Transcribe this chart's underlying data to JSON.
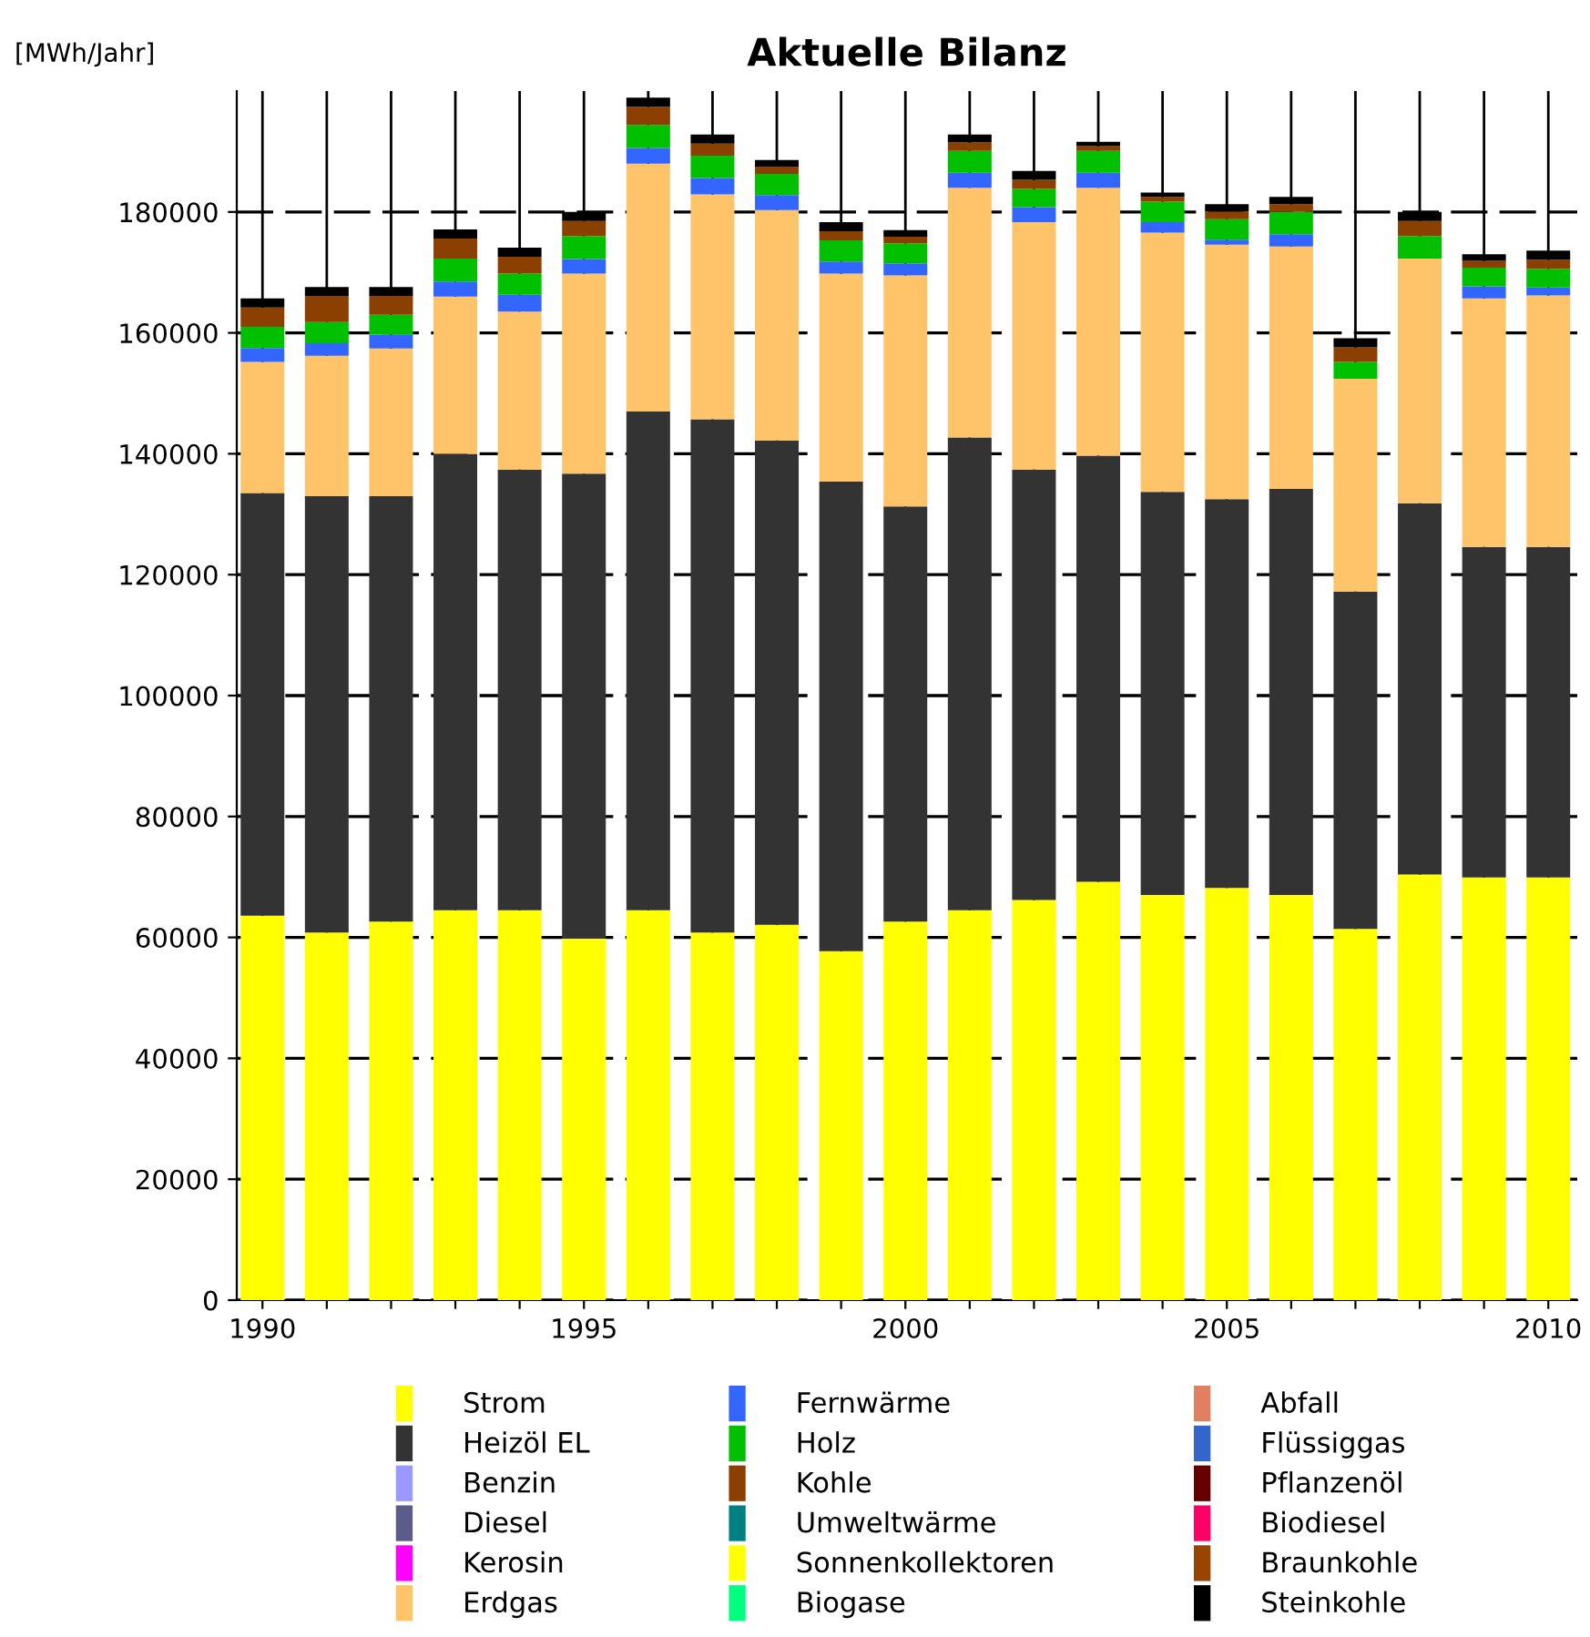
{
  "chart_data": {
    "type": "bar",
    "title": "Aktuelle Bilanz",
    "ylabel": "[MWh/Jahr]",
    "stacked": true,
    "grid": true,
    "legend": "bottom",
    "x": [
      1990,
      1991,
      1992,
      1993,
      1994,
      1995,
      1996,
      1997,
      1998,
      1999,
      2000,
      2001,
      2002,
      2003,
      2004,
      2005,
      2006,
      2007,
      2008,
      2009,
      2010
    ],
    "xlim": [
      1989.6,
      2010.45
    ],
    "xticks": [
      1990,
      {
        "value": 1991,
        "label": null
      },
      {
        "value": 1992,
        "label": null
      },
      {
        "value": 1993,
        "label": null
      },
      {
        "value": 1994,
        "label": null
      },
      1995,
      {
        "value": 1996,
        "label": null
      },
      {
        "value": 1997,
        "label": null
      },
      {
        "value": 1998,
        "label": null
      },
      {
        "value": 1999,
        "label": null
      },
      2000,
      {
        "value": 2001,
        "label": null
      },
      {
        "value": 2002,
        "label": null
      },
      {
        "value": 2003,
        "label": null
      },
      {
        "value": 2004,
        "label": null
      },
      2005,
      {
        "value": 2006,
        "label": null
      },
      {
        "value": 2007,
        "label": null
      },
      {
        "value": 2008,
        "label": null
      },
      {
        "value": 2009,
        "label": null
      },
      2010
    ],
    "ylim": [
      0,
      200000
    ],
    "yticks": [
      0,
      20000,
      40000,
      60000,
      80000,
      100000,
      120000,
      140000,
      160000,
      180000
    ],
    "series": [
      {
        "name": "Strom",
        "color": "#ffff00",
        "values": [
          63600,
          60800,
          62600,
          64500,
          64500,
          59800,
          64500,
          60800,
          62100,
          57700,
          62600,
          64500,
          66200,
          69200,
          67000,
          68200,
          67000,
          61400,
          70400,
          69900,
          69900
        ]
      },
      {
        "name": "Heizöl EL",
        "color": "#333333",
        "values": [
          69900,
          72200,
          70400,
          75500,
          72900,
          76900,
          82500,
          84900,
          80100,
          77700,
          68700,
          78200,
          71200,
          70500,
          66700,
          64300,
          67200,
          55800,
          61400,
          54700,
          54700
        ]
      },
      {
        "name": "Benzin",
        "color": "#9999ff",
        "values": [
          null,
          null,
          null,
          null,
          null,
          null,
          null,
          null,
          null,
          null,
          null,
          null,
          null,
          null,
          null,
          null,
          null,
          null,
          null,
          null,
          null
        ]
      },
      {
        "name": "Diesel",
        "color": "#5c5c8a",
        "values": [
          null,
          null,
          null,
          null,
          null,
          null,
          null,
          null,
          null,
          null,
          null,
          null,
          null,
          null,
          null,
          null,
          null,
          null,
          null,
          null,
          null
        ]
      },
      {
        "name": "Kerosin",
        "color": "#ff00ff",
        "values": [
          null,
          null,
          null,
          null,
          null,
          null,
          null,
          null,
          null,
          null,
          null,
          null,
          null,
          null,
          null,
          null,
          null,
          null,
          null,
          null,
          null
        ]
      },
      {
        "name": "Erdgas",
        "color": "#ffc46a",
        "values": [
          21700,
          23200,
          24400,
          26000,
          26100,
          33100,
          41000,
          37200,
          38100,
          34400,
          38200,
          41300,
          40900,
          44300,
          42900,
          42100,
          40100,
          35200,
          40500,
          41100,
          41600
        ]
      },
      {
        "name": "Fernwärme",
        "color": "#3366ff",
        "values": [
          2300,
          2100,
          2300,
          2500,
          2800,
          2400,
          2600,
          2700,
          2500,
          2000,
          2000,
          2500,
          2500,
          2500,
          1700,
          800,
          2000,
          null,
          null,
          2000,
          1300
        ]
      },
      {
        "name": "Holz",
        "color": "#00c000",
        "values": [
          3500,
          3500,
          3300,
          3800,
          3500,
          3800,
          3800,
          3700,
          3500,
          3500,
          3300,
          3600,
          3000,
          3600,
          3400,
          3400,
          3700,
          2800,
          3700,
          3100,
          3100
        ]
      },
      {
        "name": "Kohle",
        "color": "#8b4000",
        "values": [
          3200,
          4300,
          3100,
          3300,
          2800,
          2500,
          3000,
          2000,
          1200,
          1500,
          1100,
          1400,
          1500,
          800,
          800,
          1300,
          1300,
          2400,
          2500,
          1100,
          1500
        ]
      },
      {
        "name": "Umweltwärme",
        "color": "#008080",
        "values": [
          null,
          null,
          null,
          null,
          null,
          null,
          null,
          null,
          null,
          null,
          null,
          null,
          null,
          null,
          null,
          null,
          null,
          null,
          null,
          null,
          null
        ]
      },
      {
        "name": "Sonnenkollektoren",
        "color": "#ffff00",
        "values": [
          null,
          null,
          null,
          null,
          null,
          null,
          null,
          null,
          null,
          null,
          null,
          null,
          null,
          null,
          null,
          null,
          null,
          null,
          null,
          null,
          null
        ]
      },
      {
        "name": "Biogase",
        "color": "#00ff80",
        "values": [
          null,
          null,
          null,
          null,
          null,
          null,
          null,
          null,
          null,
          null,
          null,
          null,
          null,
          null,
          null,
          null,
          null,
          null,
          null,
          null,
          null
        ]
      },
      {
        "name": "Abfall",
        "color": "#e08060",
        "values": [
          null,
          null,
          null,
          null,
          null,
          null,
          null,
          null,
          null,
          null,
          null,
          null,
          null,
          null,
          null,
          null,
          null,
          null,
          null,
          null,
          null
        ]
      },
      {
        "name": "Flüssiggas",
        "color": "#3366cc",
        "values": [
          null,
          null,
          null,
          null,
          null,
          null,
          null,
          null,
          null,
          null,
          null,
          null,
          null,
          null,
          null,
          null,
          null,
          null,
          null,
          null,
          null
        ]
      },
      {
        "name": "Pflanzenöl",
        "color": "#660000",
        "values": [
          null,
          null,
          null,
          null,
          null,
          null,
          null,
          null,
          null,
          null,
          null,
          null,
          null,
          null,
          null,
          null,
          null,
          null,
          null,
          null,
          null
        ]
      },
      {
        "name": "Biodiesel",
        "color": "#ff0066",
        "values": [
          null,
          null,
          null,
          null,
          null,
          null,
          null,
          null,
          null,
          null,
          null,
          null,
          null,
          null,
          null,
          null,
          null,
          null,
          null,
          null,
          null
        ]
      },
      {
        "name": "Braunkohle",
        "color": "#994400",
        "values": [
          null,
          null,
          null,
          null,
          null,
          null,
          null,
          null,
          null,
          null,
          null,
          null,
          null,
          null,
          null,
          null,
          null,
          null,
          null,
          null,
          null
        ]
      },
      {
        "name": "Steinkohle",
        "color": "#000000",
        "values": [
          1500,
          1500,
          1500,
          1500,
          1500,
          1500,
          1500,
          1500,
          1100,
          1500,
          1100,
          1300,
          1500,
          700,
          700,
          1200,
          1200,
          1500,
          1500,
          1100,
          1500
        ]
      }
    ]
  }
}
